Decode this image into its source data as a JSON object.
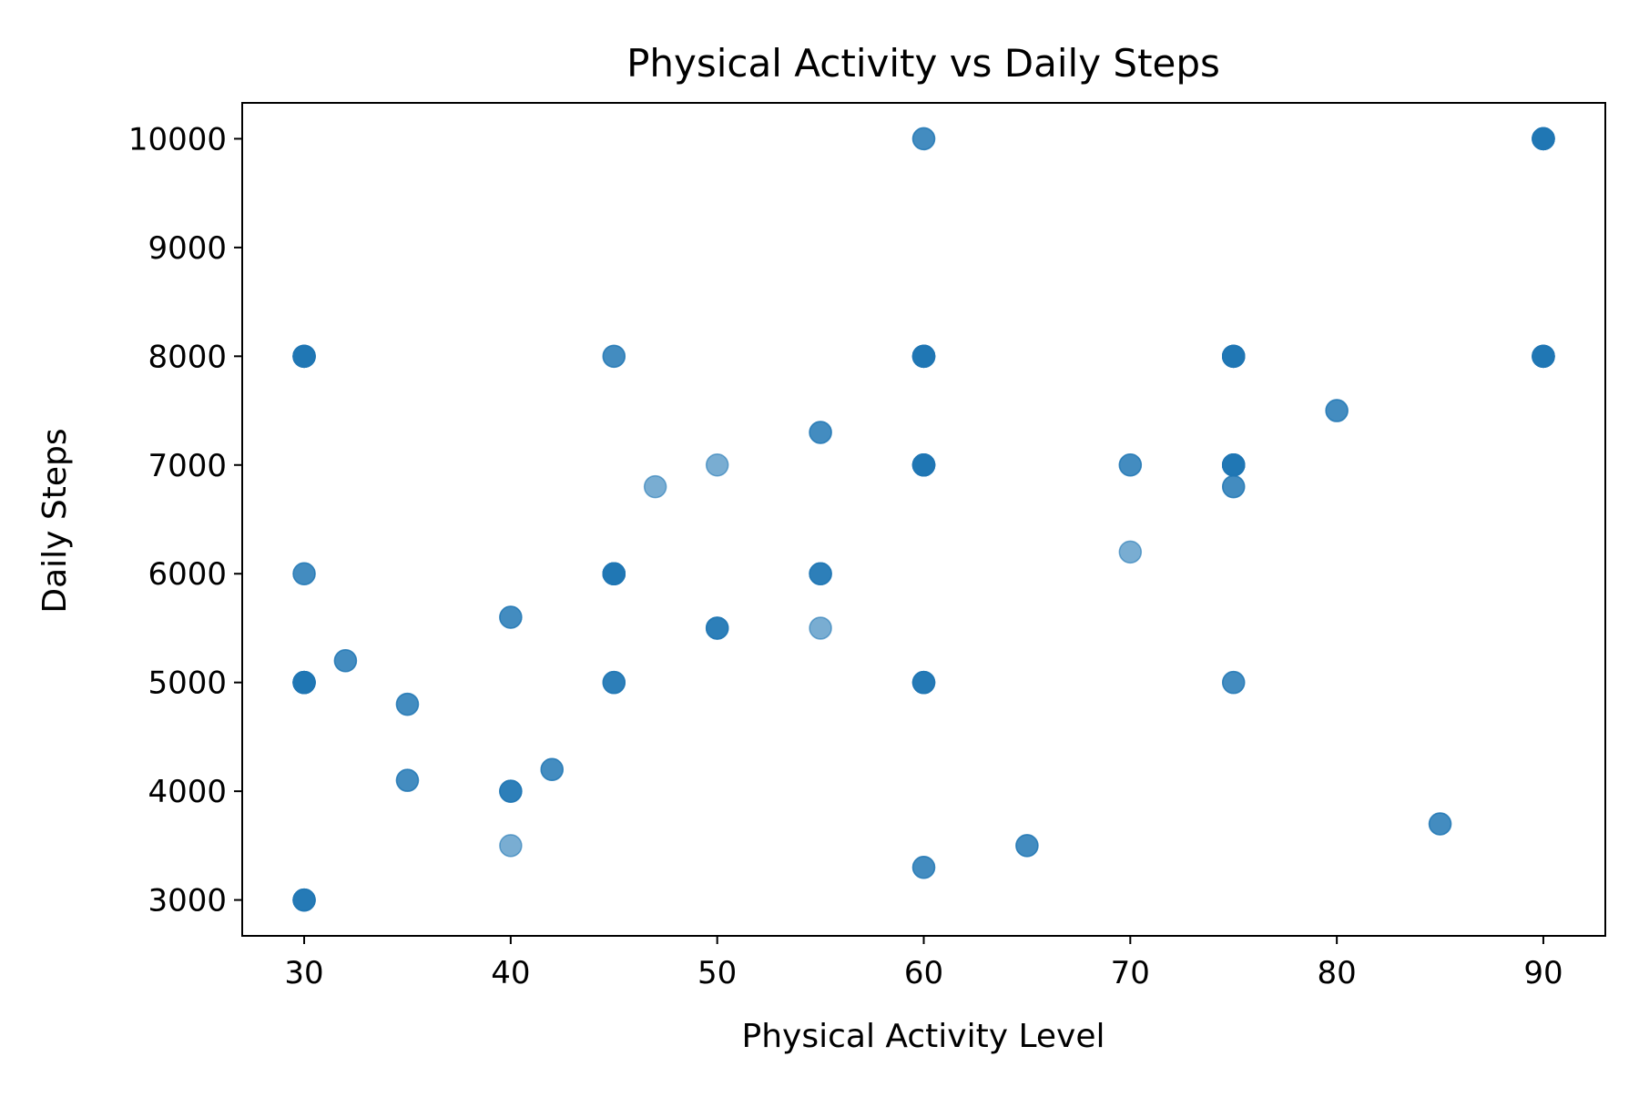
{
  "chart_data": {
    "type": "scatter",
    "title": "Physical Activity vs Daily Steps",
    "xlabel": "Physical Activity Level",
    "ylabel": "Daily Steps",
    "xlim": [
      27,
      93
    ],
    "ylim": [
      2670,
      10330
    ],
    "xticks": [
      30,
      40,
      50,
      60,
      70,
      80,
      90
    ],
    "yticks": [
      3000,
      4000,
      5000,
      6000,
      7000,
      8000,
      9000,
      10000
    ],
    "grid": false,
    "legend": "none",
    "point_color": "#1f77b4",
    "points": [
      {
        "x": 30,
        "y": 8000,
        "count": 6
      },
      {
        "x": 30,
        "y": 6000,
        "count": 2
      },
      {
        "x": 30,
        "y": 5000,
        "count": 6
      },
      {
        "x": 30,
        "y": 3000,
        "count": 4
      },
      {
        "x": 32,
        "y": 5200,
        "count": 2
      },
      {
        "x": 35,
        "y": 4800,
        "count": 2
      },
      {
        "x": 35,
        "y": 4100,
        "count": 2
      },
      {
        "x": 40,
        "y": 5600,
        "count": 2
      },
      {
        "x": 40,
        "y": 4000,
        "count": 3
      },
      {
        "x": 40,
        "y": 3500,
        "count": 1
      },
      {
        "x": 42,
        "y": 4200,
        "count": 2
      },
      {
        "x": 45,
        "y": 8000,
        "count": 2
      },
      {
        "x": 45,
        "y": 6000,
        "count": 6
      },
      {
        "x": 45,
        "y": 5000,
        "count": 3
      },
      {
        "x": 47,
        "y": 6800,
        "count": 1
      },
      {
        "x": 50,
        "y": 7000,
        "count": 1
      },
      {
        "x": 50,
        "y": 5500,
        "count": 3
      },
      {
        "x": 55,
        "y": 7300,
        "count": 2
      },
      {
        "x": 55,
        "y": 6000,
        "count": 3
      },
      {
        "x": 55,
        "y": 5500,
        "count": 1
      },
      {
        "x": 60,
        "y": 10000,
        "count": 2
      },
      {
        "x": 60,
        "y": 8000,
        "count": 6
      },
      {
        "x": 60,
        "y": 7000,
        "count": 6
      },
      {
        "x": 60,
        "y": 5000,
        "count": 4
      },
      {
        "x": 60,
        "y": 3300,
        "count": 2
      },
      {
        "x": 65,
        "y": 3500,
        "count": 2
      },
      {
        "x": 70,
        "y": 7000,
        "count": 2
      },
      {
        "x": 70,
        "y": 6200,
        "count": 1
      },
      {
        "x": 75,
        "y": 8000,
        "count": 6
      },
      {
        "x": 75,
        "y": 7000,
        "count": 6
      },
      {
        "x": 75,
        "y": 6800,
        "count": 2
      },
      {
        "x": 75,
        "y": 5000,
        "count": 2
      },
      {
        "x": 80,
        "y": 7500,
        "count": 2
      },
      {
        "x": 85,
        "y": 3700,
        "count": 2
      },
      {
        "x": 90,
        "y": 10000,
        "count": 6
      },
      {
        "x": 90,
        "y": 8000,
        "count": 6
      }
    ]
  }
}
